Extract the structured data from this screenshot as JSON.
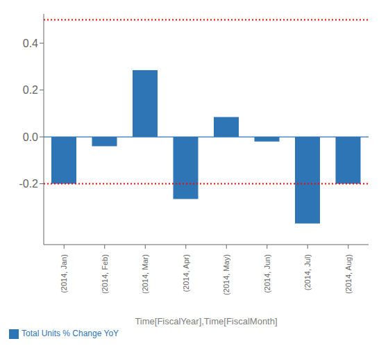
{
  "chart_data": {
    "type": "bar",
    "categories": [
      "(2014, Jan)",
      "(2014, Feb)",
      "(2014, Mar)",
      "(2014, Apr)",
      "(2014, May)",
      "(2014, Jun)",
      "(2014, Jul)",
      "(2014, Aug)"
    ],
    "series": [
      {
        "name": "Total Units % Change YoY",
        "color": "#2e75b6",
        "values": [
          -0.2,
          -0.04,
          0.285,
          -0.265,
          0.085,
          -0.02,
          -0.37,
          -0.2
        ]
      }
    ],
    "xlabel": "Time[FiscalYear],Time[FiscalMonth]",
    "ylim": [
      -0.46,
      0.525
    ],
    "yticks": [
      -0.2,
      {
        "value": 0,
        "label": "0.0"
      },
      0.2,
      0.4
    ],
    "reference_lines": [
      {
        "y": 0.5,
        "color": "red",
        "line_style": "dotted"
      },
      {
        "y": -0.2,
        "color": "red",
        "line_style": "dotted"
      },
      {
        "y": 0,
        "color": "#2e75b6",
        "line_style": "solid"
      }
    ],
    "legend": "lower left",
    "grid": false
  }
}
